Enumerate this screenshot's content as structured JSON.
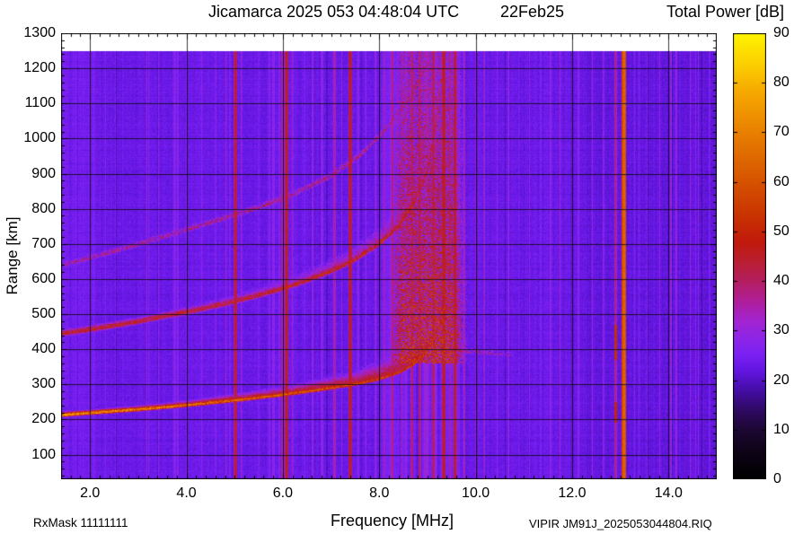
{
  "header": {
    "title": "Jicamarca 2025 053 04:48:04 UTC",
    "date": "22Feb25",
    "colorbar_title": "Total Power [dB]"
  },
  "footer": {
    "rx_mask": "RxMask 11111111",
    "xlabel": "Frequency [MHz]",
    "file_label": "VIPIR  JM91J_2025053044804.RIQ"
  },
  "chart_data": {
    "type": "heatmap",
    "title": "Jicamarca 2025 053 04:48:04 UTC  22Feb25",
    "xlabel": "Frequency [MHz]",
    "ylabel": "Range [km]",
    "colorbar_label": "Total Power [dB]",
    "x_range_mhz": [
      1.4,
      15.0
    ],
    "y_range_km": [
      30,
      1300
    ],
    "x_major_ticks": [
      2,
      4,
      6,
      8,
      10,
      12,
      14
    ],
    "x_tick_labels": [
      "2.0",
      "4.0",
      "6.0",
      "8.0",
      "10.0",
      "12.0",
      "14.0"
    ],
    "x_minor_step_mhz": 0.2,
    "y_major_ticks": [
      100,
      200,
      300,
      400,
      500,
      600,
      700,
      800,
      900,
      1000,
      1100,
      1200,
      1300
    ],
    "y_minor_step_km": 20,
    "grid": true,
    "data_top_km": 1250,
    "colorbar": {
      "min_db": 0,
      "max_db": 90,
      "ticks": [
        0,
        10,
        20,
        30,
        40,
        50,
        60,
        70,
        80,
        90
      ],
      "palette_stops": [
        [
          0,
          0,
          0,
          0
        ],
        [
          6,
          16,
          4,
          26
        ],
        [
          10,
          30,
          8,
          52
        ],
        [
          14,
          48,
          10,
          100
        ],
        [
          18,
          70,
          14,
          168
        ],
        [
          22,
          100,
          22,
          226
        ],
        [
          25,
          122,
          32,
          243
        ],
        [
          28,
          140,
          38,
          234
        ],
        [
          32,
          163,
          36,
          208
        ],
        [
          36,
          176,
          30,
          152
        ],
        [
          40,
          180,
          30,
          96
        ],
        [
          44,
          186,
          30,
          48
        ],
        [
          48,
          193,
          26,
          12
        ],
        [
          54,
          203,
          55,
          0
        ],
        [
          62,
          218,
          92,
          0
        ],
        [
          70,
          233,
          128,
          0
        ],
        [
          78,
          246,
          168,
          0
        ],
        [
          84,
          252,
          208,
          0
        ],
        [
          90,
          255,
          244,
          0
        ]
      ]
    },
    "background": {
      "base_db": 23,
      "pixel_noise_db": 3.2,
      "bands": [
        {
          "f_min": 1.4,
          "f_max": 2.1,
          "db": 1.5
        },
        {
          "f_min": 8.05,
          "f_max": 9.75,
          "db": 2.2
        },
        {
          "f_min": 12.3,
          "f_max": 15.0,
          "db": -1.0
        }
      ]
    },
    "traces": [
      {
        "name": "F-region echo 1st hop",
        "hw_km": 7,
        "spread_drop_db": 8,
        "speckle": 0.35,
        "points": [
          [
            1.4,
            212
          ],
          [
            2,
            218
          ],
          [
            3,
            228
          ],
          [
            4,
            240
          ],
          [
            5,
            254
          ],
          [
            6,
            270
          ],
          [
            6.8,
            285
          ],
          [
            7.5,
            300
          ],
          [
            8,
            315
          ],
          [
            8.4,
            333
          ],
          [
            8.7,
            355
          ],
          [
            9.0,
            392
          ],
          [
            9.15,
            430
          ],
          [
            9.3,
            478
          ],
          [
            9.45,
            520
          ]
        ],
        "db_points": [
          [
            1.4,
            72
          ],
          [
            3,
            68
          ],
          [
            5,
            64
          ],
          [
            6.5,
            60
          ],
          [
            7.5,
            57
          ],
          [
            8.3,
            55
          ],
          [
            8.9,
            52
          ],
          [
            9.15,
            48
          ],
          [
            9.45,
            42
          ]
        ],
        "spread_points": [
          [
            1.4,
            10
          ],
          [
            4,
            16
          ],
          [
            6,
            28
          ],
          [
            7.5,
            50
          ],
          [
            8.4,
            85
          ],
          [
            9.0,
            130
          ],
          [
            9.45,
            150
          ]
        ]
      },
      {
        "name": "F-region echo 2nd hop",
        "hw_km": 12,
        "spread_drop_db": 9,
        "speckle": 0.45,
        "points": [
          [
            1.4,
            443
          ],
          [
            2,
            455
          ],
          [
            3,
            478
          ],
          [
            4,
            505
          ],
          [
            5,
            535
          ],
          [
            6,
            572
          ],
          [
            6.5,
            595
          ],
          [
            7,
            622
          ],
          [
            7.5,
            655
          ],
          [
            8,
            700
          ],
          [
            8.4,
            750
          ],
          [
            8.7,
            810
          ],
          [
            9.0,
            905
          ],
          [
            9.15,
            1010
          ],
          [
            9.25,
            1120
          ],
          [
            9.32,
            1255
          ]
        ],
        "db_points": [
          [
            1.4,
            45
          ],
          [
            4,
            45
          ],
          [
            6,
            46
          ],
          [
            7,
            47
          ],
          [
            8,
            48
          ],
          [
            8.8,
            47
          ],
          [
            9.32,
            44
          ]
        ],
        "spread_points": [
          [
            1.4,
            18
          ],
          [
            4,
            28
          ],
          [
            6,
            45
          ],
          [
            7.5,
            65
          ],
          [
            8.6,
            95
          ],
          [
            9.32,
            130
          ]
        ]
      },
      {
        "name": "F-region echo 3rd hop",
        "hw_km": 12,
        "spread_drop_db": 4,
        "speckle": 0.8,
        "points": [
          [
            1.5,
            640
          ],
          [
            2.5,
            678
          ],
          [
            3.5,
            718
          ],
          [
            4.5,
            760
          ],
          [
            5.5,
            803
          ],
          [
            6.3,
            845
          ],
          [
            7,
            893
          ],
          [
            7.6,
            950
          ],
          [
            8.1,
            1020
          ],
          [
            8.6,
            1110
          ],
          [
            9.0,
            1210
          ]
        ],
        "db_points": [
          [
            1.5,
            32
          ],
          [
            5,
            34
          ],
          [
            7,
            35
          ],
          [
            9,
            35
          ]
        ],
        "spread_points": [
          [
            1.5,
            14
          ],
          [
            6,
            20
          ],
          [
            9,
            28
          ]
        ]
      },
      {
        "name": "spread-F oblique extension",
        "hw_km": 10,
        "spread_drop_db": 6,
        "speckle": 0.9,
        "points": [
          [
            9.45,
            400
          ],
          [
            10.1,
            390
          ],
          [
            10.75,
            383
          ]
        ],
        "db_points": [
          [
            9.45,
            33
          ],
          [
            10.75,
            28
          ]
        ],
        "spread_points": [
          [
            9.45,
            18
          ],
          [
            10.75,
            12
          ]
        ]
      }
    ],
    "plume": {
      "name": "range-spread-F plume near foF2",
      "f_center": 9.0,
      "f_flat_halfwidth": 0.45,
      "f_sigma": 0.3,
      "db": 46,
      "r_min_km": 360,
      "r_max_km": 1255,
      "top_fade": 0.35
    },
    "rfi_lines": [
      {
        "mhz": 2.32,
        "db": 28,
        "w": 1
      },
      {
        "mhz": 2.52,
        "db": 29,
        "w": 1
      },
      {
        "mhz": 3.18,
        "db": 30,
        "w": 1
      },
      {
        "mhz": 3.42,
        "db": 29,
        "w": 1
      },
      {
        "mhz": 3.95,
        "db": 28,
        "w": 1
      },
      {
        "mhz": 4.32,
        "db": 30,
        "w": 1
      },
      {
        "mhz": 4.62,
        "db": 29,
        "w": 1
      },
      {
        "mhz": 4.82,
        "db": 31,
        "w": 1
      },
      {
        "mhz": 5.02,
        "db": 46,
        "w": 2
      },
      {
        "mhz": 5.14,
        "db": 33,
        "w": 1
      },
      {
        "mhz": 5.5,
        "db": 30,
        "w": 1
      },
      {
        "mhz": 5.72,
        "db": 29,
        "w": 1
      },
      {
        "mhz": 5.98,
        "db": 40,
        "w": 1
      },
      {
        "mhz": 6.08,
        "db": 48,
        "w": 2
      },
      {
        "mhz": 6.2,
        "db": 34,
        "w": 1
      },
      {
        "mhz": 6.45,
        "db": 30,
        "w": 1
      },
      {
        "mhz": 6.62,
        "db": 34,
        "w": 1
      },
      {
        "mhz": 6.82,
        "db": 32,
        "w": 1
      },
      {
        "mhz": 7.07,
        "db": 38,
        "w": 1.5
      },
      {
        "mhz": 7.22,
        "db": 30,
        "w": 1
      },
      {
        "mhz": 7.4,
        "db": 48,
        "w": 2
      },
      {
        "mhz": 7.58,
        "db": 31,
        "w": 1
      },
      {
        "mhz": 7.72,
        "db": 32,
        "w": 1
      },
      {
        "mhz": 7.92,
        "db": 34,
        "w": 1
      },
      {
        "mhz": 8.1,
        "db": 36,
        "w": 1
      },
      {
        "mhz": 8.27,
        "db": 40,
        "w": 1.5
      },
      {
        "mhz": 8.47,
        "db": 35,
        "w": 1
      },
      {
        "mhz": 8.68,
        "db": 42,
        "w": 1.5
      },
      {
        "mhz": 8.84,
        "db": 42,
        "w": 1.5
      },
      {
        "mhz": 9.0,
        "db": 37,
        "w": 1
      },
      {
        "mhz": 9.12,
        "db": 44,
        "w": 1.5
      },
      {
        "mhz": 9.34,
        "db": 48,
        "w": 2
      },
      {
        "mhz": 9.46,
        "db": 39,
        "w": 1
      },
      {
        "mhz": 9.57,
        "db": 46,
        "w": 2
      },
      {
        "mhz": 9.77,
        "db": 37,
        "w": 1
      },
      {
        "mhz": 10.0,
        "db": 31,
        "w": 1
      },
      {
        "mhz": 10.18,
        "db": 34,
        "w": 1
      },
      {
        "mhz": 10.45,
        "db": 30,
        "w": 1
      },
      {
        "mhz": 10.68,
        "db": 33,
        "w": 1
      },
      {
        "mhz": 10.9,
        "db": 29,
        "w": 1
      },
      {
        "mhz": 11.12,
        "db": 30,
        "w": 1
      },
      {
        "mhz": 11.35,
        "db": 30,
        "w": 1
      },
      {
        "mhz": 11.55,
        "db": 29,
        "w": 1
      },
      {
        "mhz": 11.75,
        "db": 32,
        "w": 1
      },
      {
        "mhz": 12.13,
        "db": 33,
        "w": 1
      },
      {
        "mhz": 12.42,
        "db": 30,
        "w": 1
      },
      {
        "mhz": 12.65,
        "db": 32,
        "w": 1
      },
      {
        "mhz": 12.9,
        "db": 40,
        "w": 1.5,
        "segments": [
          [
            190,
            250,
            50
          ],
          [
            370,
            470,
            52
          ]
        ]
      },
      {
        "mhz": 13.08,
        "db": 66,
        "w": 2.5
      },
      {
        "mhz": 13.3,
        "db": 29,
        "w": 1
      },
      {
        "mhz": 13.55,
        "db": 29,
        "w": 1
      },
      {
        "mhz": 13.82,
        "db": 30,
        "w": 1
      },
      {
        "mhz": 14.05,
        "db": 34,
        "w": 1
      },
      {
        "mhz": 14.16,
        "db": 34,
        "w": 1
      },
      {
        "mhz": 14.45,
        "db": 30,
        "w": 1
      },
      {
        "mhz": 14.62,
        "db": 29,
        "w": 1
      },
      {
        "mhz": 14.85,
        "db": 30,
        "w": 1
      }
    ]
  }
}
